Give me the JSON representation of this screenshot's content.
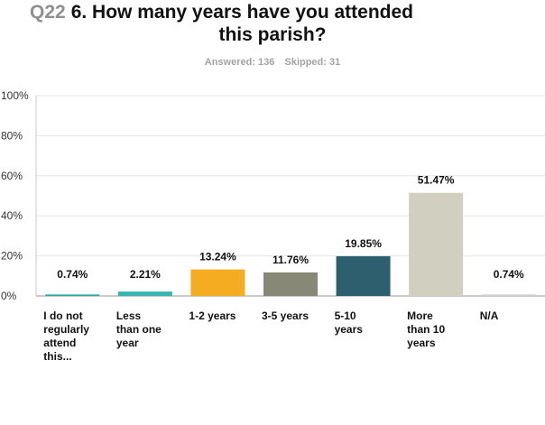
{
  "header": {
    "question_number": "Q22",
    "title_line1": "6. How many years have you attended",
    "title_line2": "this parish?",
    "answered": "Answered: 136",
    "skipped": "Skipped: 31"
  },
  "chart_data": {
    "type": "bar",
    "categories": [
      "I do not regularly attend this...",
      "Less than one year",
      "1-2 years",
      "3-5 years",
      "5-10 years",
      "More than 10 years",
      "N/A"
    ],
    "category_lines": [
      [
        "I do not",
        "regularly",
        "attend",
        "this..."
      ],
      [
        "Less",
        "than one",
        "year"
      ],
      [
        "1-2 years"
      ],
      [
        "3-5 years"
      ],
      [
        "5-10",
        "years"
      ],
      [
        "More",
        "than 10",
        "years"
      ],
      [
        "N/A"
      ]
    ],
    "values": [
      0.74,
      2.21,
      13.24,
      11.76,
      19.85,
      51.47,
      0.74
    ],
    "value_labels": [
      "0.74%",
      "2.21%",
      "13.24%",
      "11.76%",
      "19.85%",
      "51.47%",
      "0.74%"
    ],
    "colors": [
      "#2aa8a8",
      "#3ab5b0",
      "#f5ac21",
      "#878976",
      "#2d5f6e",
      "#d1cfbf",
      "#cfcfcf"
    ],
    "yticks": [
      "0%",
      "20%",
      "40%",
      "60%",
      "80%",
      "100%"
    ],
    "ylim": [
      0,
      100
    ],
    "grid": true
  }
}
